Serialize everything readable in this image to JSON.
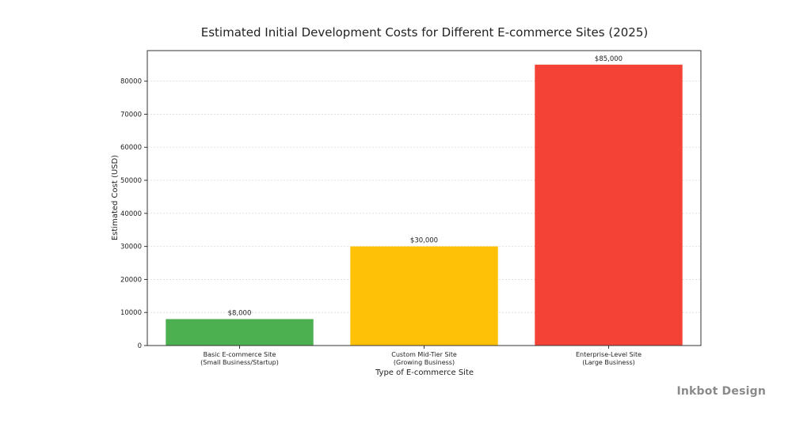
{
  "chart_data": {
    "type": "bar",
    "title": "Estimated Initial Development Costs for Different E-commerce Sites (2025)",
    "xlabel": "Type of E-commerce Site",
    "ylabel": "Estimated Cost (USD)",
    "categories": [
      [
        "Basic E-commerce Site",
        "(Small Business/Startup)"
      ],
      [
        "Custom Mid-Tier Site",
        "(Growing Business)"
      ],
      [
        "Enterprise-Level Site",
        "(Large Business)"
      ]
    ],
    "values": [
      8000,
      30000,
      85000
    ],
    "data_labels": [
      "$8,000",
      "$30,000",
      "$85,000"
    ],
    "colors": [
      "#4caf50",
      "#ffc107",
      "#f44336"
    ],
    "ylim": [
      0,
      89250
    ],
    "yticks": [
      0,
      10000,
      20000,
      30000,
      40000,
      50000,
      60000,
      70000,
      80000
    ],
    "grid": "horizontal",
    "legend": "none"
  },
  "watermark": "Inkbot Design"
}
